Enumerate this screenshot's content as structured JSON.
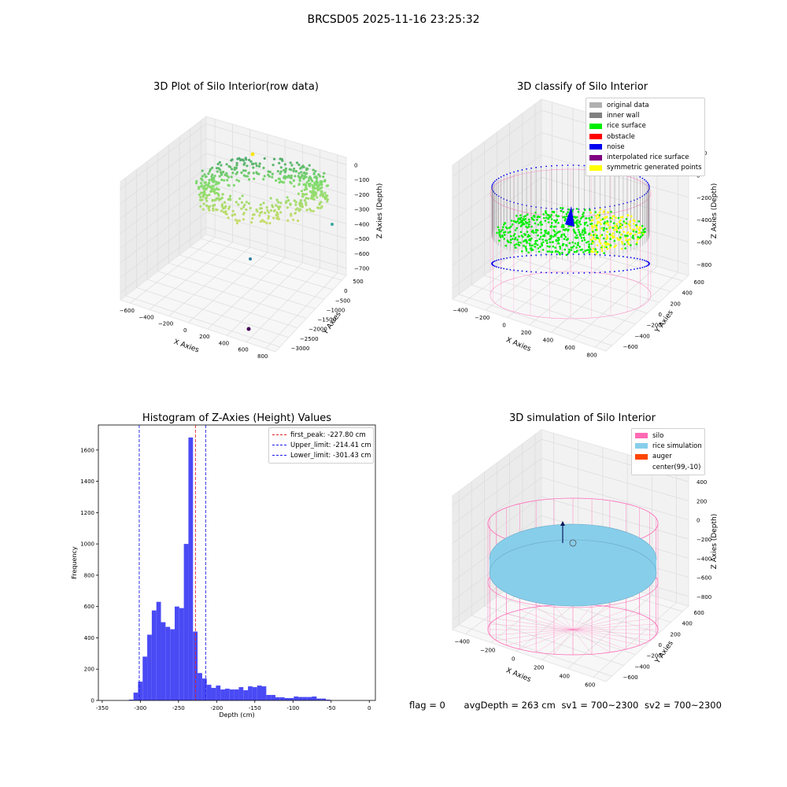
{
  "suptitle": "BRCSD05 2025-11-16 23:25:32",
  "footer": {
    "flag": "flag = 0",
    "avg_depth": "avgDepth = 263 cm",
    "sv1": "sv1 = 700~2300",
    "sv2": "sv2 = 700~2300"
  },
  "colors": {
    "histogram_bar": "#4a4af5",
    "first_peak_line": "#e02020",
    "limit_lines": "#1a1ae6",
    "silo": "#ff69b4",
    "rice_simulation": "#87ceeb",
    "auger": "#ff4500",
    "rice_surface": "#00ee00",
    "noise": "#0000ee",
    "inner_wall": "#808080",
    "original_data": "#b0b0b0",
    "obstacle": "#ff0000",
    "interpolated_rice_surface": "#800080",
    "symmetric_generated_points": "#ffff00"
  },
  "chart_data": [
    {
      "type": "scatter",
      "title": "3D Plot of Silo Interior(row data)",
      "xlabel": "X Axies",
      "ylabel": "Y Axies",
      "zlabel": "Z Axies (Depth)",
      "x_ticks": [
        "−600",
        "−400",
        "−200",
        "0",
        "200",
        "400",
        "600",
        "800"
      ],
      "y_ticks": [
        "500",
        "0",
        "−500",
        "−1000",
        "−1500",
        "−2000",
        "−2500",
        "−3000"
      ],
      "z_ticks": [
        "0",
        "−100",
        "−200",
        "−300",
        "−400",
        "−500",
        "−600",
        "−700"
      ],
      "xlim": [
        -650,
        850
      ],
      "ylim": [
        -3100,
        600
      ],
      "zlim": [
        -720,
        30
      ]
    },
    {
      "type": "scatter",
      "title": "3D classify of Silo Interior",
      "xlabel": "X Axies",
      "ylabel": "Y Axies",
      "zlabel": "Z Axies (Depth)",
      "x_ticks": [
        "−400",
        "−200",
        "0",
        "200",
        "400",
        "600",
        "800"
      ],
      "y_ticks": [
        "600",
        "400",
        "200",
        "0",
        "−200",
        "−400",
        "−600"
      ],
      "z_ticks": [
        "200",
        "0",
        "−200",
        "−400",
        "−600",
        "−800"
      ],
      "legend": [
        "original data",
        "inner wall",
        "rice surface",
        "obstacle",
        "noise",
        "interpolated rice surface",
        "symmetric generated points"
      ],
      "legend_loc": "upper right"
    },
    {
      "type": "bar",
      "title": "Histogram of Z-Axies (Height) Values",
      "xlabel": "Depth (cm)",
      "ylabel": "Frequency",
      "xlim": [
        -355,
        8
      ],
      "ylim": [
        0,
        1760
      ],
      "x_ticks": [
        -350,
        -300,
        -250,
        -200,
        -150,
        -100,
        -50,
        0
      ],
      "y_ticks": [
        0,
        200,
        400,
        600,
        800,
        1000,
        1200,
        1400,
        1600
      ],
      "bin_start": -315,
      "bin_width": 6,
      "values": [
        5,
        50,
        120,
        280,
        420,
        575,
        630,
        500,
        470,
        455,
        600,
        590,
        1000,
        1680,
        440,
        175,
        140,
        100,
        80,
        95,
        70,
        75,
        70,
        70,
        85,
        65,
        90,
        85,
        95,
        90,
        35,
        35,
        20,
        20,
        15,
        15,
        25,
        22,
        22,
        22,
        25,
        12,
        12,
        5
      ],
      "vlines": [
        {
          "label": "first_peak: -227.80 cm",
          "x": -227.8,
          "style": "dashed",
          "color": "#e02020"
        },
        {
          "label": "Upper_limit: -214.41 cm",
          "x": -214.41,
          "style": "dashed",
          "color": "#1a1ae6"
        },
        {
          "label": "Lower_limit: -301.43 cm",
          "x": -301.43,
          "style": "dashed",
          "color": "#1a1ae6"
        }
      ],
      "legend_loc": "upper right"
    },
    {
      "type": "scatter",
      "title": "3D simulation of Silo Interior",
      "xlabel": "X Axies",
      "ylabel": "Y Axies",
      "zlabel": "Z Axies (Depth)",
      "x_ticks": [
        "−400",
        "−200",
        "0",
        "200",
        "400",
        "600"
      ],
      "y_ticks": [
        "600",
        "400",
        "200",
        "0",
        "−200",
        "−400",
        "−600"
      ],
      "z_ticks": [
        "400",
        "200",
        "0",
        "−200",
        "−400",
        "−600",
        "−800"
      ],
      "legend": [
        "silo",
        "rice simulation",
        "auger",
        "center(99,-10)"
      ],
      "legend_loc": "upper right"
    }
  ]
}
